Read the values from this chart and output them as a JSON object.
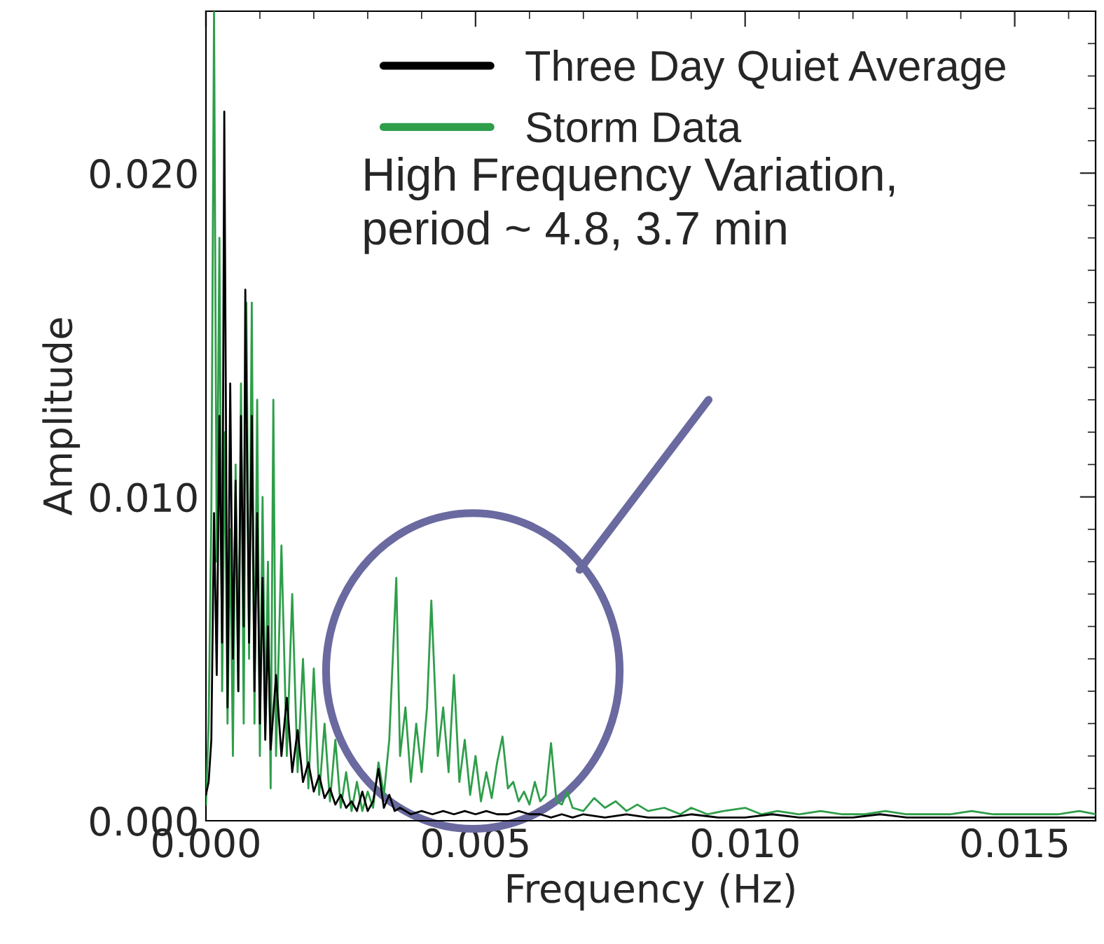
{
  "chart_data": {
    "type": "line",
    "xlabel": "Frequency (Hz)",
    "ylabel": "Amplitude",
    "xlim": [
      0,
      0.0165
    ],
    "ylim": [
      0,
      0.025
    ],
    "xticks": [
      {
        "value": 0,
        "label": "0.000"
      },
      {
        "value": 0.005,
        "label": "0.005"
      },
      {
        "value": 0.01,
        "label": "0.010"
      },
      {
        "value": 0.015,
        "label": "0.015"
      }
    ],
    "yticks": [
      {
        "value": 0,
        "label": "0.000"
      },
      {
        "value": 0.01,
        "label": "0.010"
      },
      {
        "value": 0.02,
        "label": "0.020"
      }
    ],
    "grid": false,
    "legend": "top",
    "marker": "none",
    "line_style": "solid",
    "annotations": [
      "High Frequency Variation,\nperiod ~ 4.8, 3.7 min"
    ],
    "series": [
      {
        "name": "Three Day Quiet Average",
        "color": "#000000",
        "x": [
          0.0,
          5e-05,
          0.0001,
          0.00015,
          0.0002,
          0.00025,
          0.0003,
          0.00034,
          0.0004,
          0.00045,
          0.0005,
          0.00055,
          0.0006,
          0.00065,
          0.0007,
          0.00073,
          0.0008,
          0.00085,
          0.0009,
          0.00095,
          0.001,
          0.00105,
          0.0011,
          0.00115,
          0.0012,
          0.0013,
          0.0014,
          0.0015,
          0.0016,
          0.0017,
          0.0018,
          0.0019,
          0.002,
          0.0021,
          0.0022,
          0.0023,
          0.0024,
          0.0025,
          0.0026,
          0.0027,
          0.0028,
          0.0029,
          0.003,
          0.0031,
          0.0032,
          0.0033,
          0.0034,
          0.0035,
          0.0036,
          0.0038,
          0.004,
          0.0042,
          0.0044,
          0.0046,
          0.0048,
          0.005,
          0.0052,
          0.0054,
          0.0056,
          0.0058,
          0.006,
          0.0062,
          0.0064,
          0.0066,
          0.0068,
          0.007,
          0.0074,
          0.0078,
          0.0082,
          0.0086,
          0.009,
          0.0095,
          0.01,
          0.0105,
          0.011,
          0.0115,
          0.012,
          0.0125,
          0.013,
          0.0135,
          0.014,
          0.0145,
          0.015,
          0.0155,
          0.016,
          0.0165
        ],
        "values": [
          0.0008,
          0.0012,
          0.0025,
          0.0095,
          0.0045,
          0.0125,
          0.0055,
          0.0219,
          0.0035,
          0.0135,
          0.005,
          0.0105,
          0.004,
          0.0125,
          0.006,
          0.0164,
          0.0055,
          0.0125,
          0.004,
          0.0095,
          0.003,
          0.0075,
          0.0025,
          0.006,
          0.0022,
          0.0045,
          0.002,
          0.0038,
          0.0015,
          0.0028,
          0.0012,
          0.0018,
          0.0009,
          0.0014,
          0.0007,
          0.001,
          0.0005,
          0.0008,
          0.0004,
          0.0006,
          0.0003,
          0.0009,
          0.0003,
          0.0006,
          0.0016,
          0.0004,
          0.0008,
          0.0003,
          0.0004,
          0.0002,
          0.0003,
          0.0002,
          0.0003,
          0.0002,
          0.0003,
          0.0002,
          0.0003,
          0.0002,
          0.0002,
          0.0003,
          0.0002,
          0.0002,
          0.0001,
          0.0002,
          0.0001,
          0.0002,
          0.0001,
          0.0002,
          0.0001,
          0.0001,
          0.0002,
          0.0001,
          0.0001,
          0.0002,
          0.0001,
          0.0001,
          0.0001,
          0.0002,
          0.0001,
          0.0001,
          0.0001,
          0.0001,
          0.0001,
          0.0001,
          0.0001,
          0.0001
        ]
      },
      {
        "name": "Storm Data",
        "color": "#2e9e4a",
        "x": [
          0.0,
          5e-05,
          0.0001,
          0.00015,
          0.0002,
          0.00025,
          0.0003,
          0.00035,
          0.0004,
          0.00045,
          0.0005,
          0.00055,
          0.0006,
          0.00065,
          0.0007,
          0.00075,
          0.0008,
          0.00085,
          0.0009,
          0.00095,
          0.001,
          0.00105,
          0.0011,
          0.00115,
          0.0012,
          0.00125,
          0.0013,
          0.0014,
          0.0015,
          0.0016,
          0.0017,
          0.0018,
          0.0019,
          0.002,
          0.0021,
          0.0022,
          0.0023,
          0.0024,
          0.0025,
          0.0026,
          0.0027,
          0.0028,
          0.0029,
          0.003,
          0.0031,
          0.0032,
          0.0033,
          0.0034,
          0.00353,
          0.0036,
          0.0037,
          0.0038,
          0.0039,
          0.004,
          0.0041,
          0.00418,
          0.0043,
          0.0044,
          0.0045,
          0.0046,
          0.0047,
          0.0048,
          0.0049,
          0.005,
          0.0051,
          0.0052,
          0.0053,
          0.0054,
          0.0055,
          0.0056,
          0.0057,
          0.0058,
          0.0059,
          0.006,
          0.0061,
          0.0062,
          0.0063,
          0.0064,
          0.0065,
          0.0066,
          0.0067,
          0.0068,
          0.007,
          0.0072,
          0.0074,
          0.0076,
          0.0078,
          0.008,
          0.0082,
          0.0085,
          0.0088,
          0.009,
          0.0093,
          0.0096,
          0.01,
          0.0103,
          0.0106,
          0.011,
          0.0114,
          0.0118,
          0.0122,
          0.0126,
          0.013,
          0.0134,
          0.0138,
          0.0142,
          0.0146,
          0.015,
          0.0154,
          0.0158,
          0.0162,
          0.0165
        ],
        "values": [
          0.0005,
          0.003,
          0.0095,
          0.025,
          0.008,
          0.018,
          0.004,
          0.012,
          0.003,
          0.009,
          0.002,
          0.011,
          0.004,
          0.0135,
          0.003,
          0.016,
          0.005,
          0.016,
          0.003,
          0.013,
          0.002,
          0.01,
          0.003,
          0.008,
          0.001,
          0.013,
          0.002,
          0.0085,
          0.002,
          0.007,
          0.0015,
          0.005,
          0.001,
          0.0047,
          0.0008,
          0.003,
          0.0006,
          0.0025,
          0.0004,
          0.0015,
          0.0003,
          0.0012,
          0.0003,
          0.0009,
          0.0004,
          0.0018,
          0.0008,
          0.0025,
          0.0075,
          0.002,
          0.0035,
          0.0012,
          0.003,
          0.0015,
          0.0035,
          0.0068,
          0.002,
          0.0035,
          0.0015,
          0.0045,
          0.0012,
          0.0025,
          0.0008,
          0.002,
          0.0006,
          0.0015,
          0.0007,
          0.0018,
          0.0026,
          0.001,
          0.0012,
          0.0006,
          0.0009,
          0.0005,
          0.0012,
          0.0006,
          0.0008,
          0.0024,
          0.0006,
          0.0005,
          0.0009,
          0.0004,
          0.0003,
          0.0007,
          0.0004,
          0.0006,
          0.0003,
          0.0005,
          0.0003,
          0.0004,
          0.0002,
          0.0004,
          0.0002,
          0.0003,
          0.0004,
          0.0002,
          0.0003,
          0.0002,
          0.0003,
          0.0002,
          0.0002,
          0.0003,
          0.0002,
          0.0002,
          0.0002,
          0.0003,
          0.0002,
          0.0002,
          0.0002,
          0.0002,
          0.0003,
          0.0002
        ]
      }
    ]
  }
}
